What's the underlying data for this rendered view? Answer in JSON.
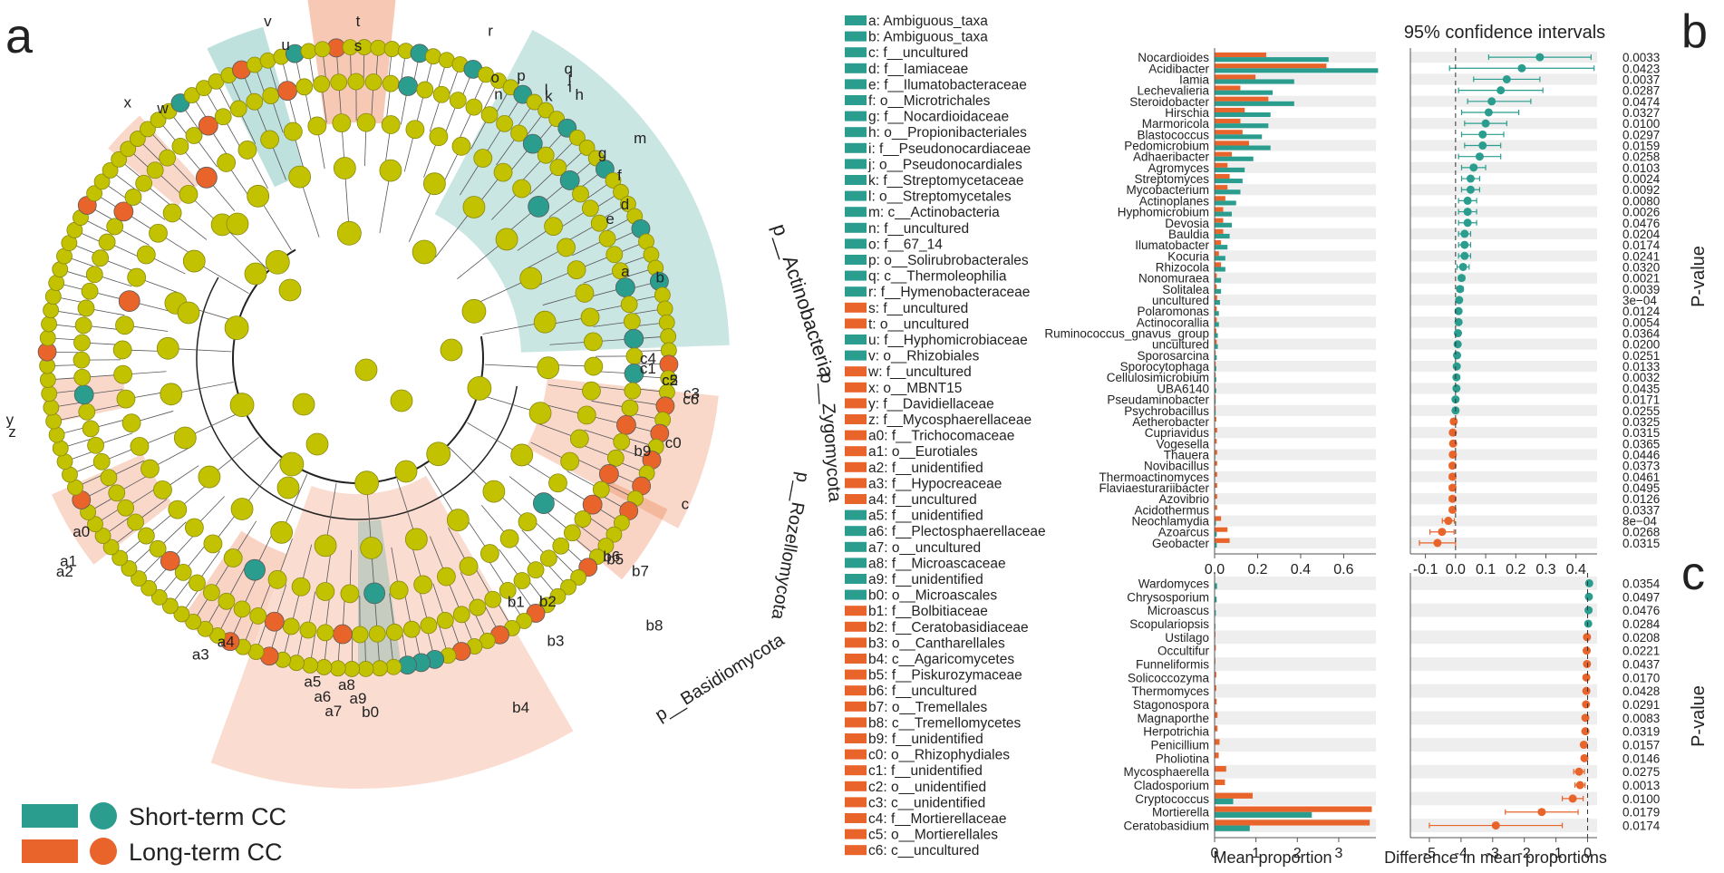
{
  "panel_labels": {
    "a": "a",
    "b": "b",
    "c": "c"
  },
  "colors": {
    "short": "#2a9d8f",
    "long": "#e8642a",
    "node": "#c2c200",
    "nodeStroke": "#8a8a10"
  },
  "legend": {
    "short": "Short-term CC",
    "long": "Long-term CC"
  },
  "cladogram": {
    "phyla": [
      "p__Actinobacteria",
      "p__Zygomycota",
      "p__Rozellomycota",
      "p__Basidiomycota"
    ],
    "clade_letters": [
      "a",
      "b",
      "c",
      "d",
      "e",
      "f",
      "g",
      "h",
      "i",
      "j",
      "k",
      "l",
      "m",
      "n",
      "o",
      "p",
      "q",
      "r",
      "s",
      "t",
      "u",
      "v",
      "w",
      "x",
      "y",
      "z",
      "a0",
      "a1",
      "a2",
      "a3",
      "a4",
      "a5",
      "a6",
      "a7",
      "a8",
      "a9",
      "b0",
      "b1",
      "b2",
      "b3",
      "b4",
      "b5",
      "b6",
      "b7",
      "b8",
      "b9",
      "c0",
      "c1",
      "c2",
      "c3",
      "c4",
      "c5",
      "c6"
    ],
    "key": [
      {
        "id": "a",
        "text": "a: Ambiguous_taxa",
        "g": "short"
      },
      {
        "id": "b",
        "text": "b: Ambiguous_taxa",
        "g": "short"
      },
      {
        "id": "c",
        "text": "c: f__uncultured",
        "g": "short"
      },
      {
        "id": "d",
        "text": "d: f__Iamiaceae",
        "g": "short"
      },
      {
        "id": "e",
        "text": "e: f__Ilumatobacteraceae",
        "g": "short"
      },
      {
        "id": "f",
        "text": "f: o__Microtrichales",
        "g": "short"
      },
      {
        "id": "g",
        "text": "g: f__Nocardioidaceae",
        "g": "short"
      },
      {
        "id": "h",
        "text": "h: o__Propionibacteriales",
        "g": "short"
      },
      {
        "id": "i",
        "text": "i: f__Pseudonocardiaceae",
        "g": "short"
      },
      {
        "id": "j",
        "text": "j: o__Pseudonocardiales",
        "g": "short"
      },
      {
        "id": "k",
        "text": "k: f__Streptomycetaceae",
        "g": "short"
      },
      {
        "id": "l",
        "text": "l: o__Streptomycetales",
        "g": "short"
      },
      {
        "id": "m",
        "text": "m: c__Actinobacteria",
        "g": "short"
      },
      {
        "id": "n",
        "text": "n: f__uncultured",
        "g": "short"
      },
      {
        "id": "o",
        "text": "o: f__67_14",
        "g": "short"
      },
      {
        "id": "p",
        "text": "p: o__Solirubrobacterales",
        "g": "short"
      },
      {
        "id": "q",
        "text": "q: c__Thermoleophilia",
        "g": "short"
      },
      {
        "id": "r",
        "text": "r: f__Hymenobacteraceae",
        "g": "short"
      },
      {
        "id": "s",
        "text": "s: f__uncultured",
        "g": "long"
      },
      {
        "id": "t",
        "text": "t: o__uncultured",
        "g": "long"
      },
      {
        "id": "u",
        "text": "u: f__Hyphomicrobiaceae",
        "g": "short"
      },
      {
        "id": "v",
        "text": "v: o__Rhizobiales",
        "g": "short"
      },
      {
        "id": "w",
        "text": "w: f__uncultured",
        "g": "long"
      },
      {
        "id": "x",
        "text": "x: o__MBNT15",
        "g": "long"
      },
      {
        "id": "y",
        "text": "y: f__Davidiellaceae",
        "g": "long"
      },
      {
        "id": "z",
        "text": "z: f__Mycosphaerellaceae",
        "g": "long"
      },
      {
        "id": "a0",
        "text": "a0: f__Trichocomaceae",
        "g": "long"
      },
      {
        "id": "a1",
        "text": "a1: o__Eurotiales",
        "g": "long"
      },
      {
        "id": "a2",
        "text": "a2: f__unidentified",
        "g": "long"
      },
      {
        "id": "a3",
        "text": "a3: f__Hypocreaceae",
        "g": "long"
      },
      {
        "id": "a4",
        "text": "a4: f__uncultured",
        "g": "long"
      },
      {
        "id": "a5",
        "text": "a5: f__unidentified",
        "g": "short"
      },
      {
        "id": "a6",
        "text": "a6: f__Plectosphaerellaceae",
        "g": "short"
      },
      {
        "id": "a7",
        "text": "a7: o__uncultured",
        "g": "short"
      },
      {
        "id": "a8",
        "text": "a8: f__Microascaceae",
        "g": "short"
      },
      {
        "id": "a9",
        "text": "a9: f__unidentified",
        "g": "short"
      },
      {
        "id": "b0",
        "text": "b0: o__Microascales",
        "g": "short"
      },
      {
        "id": "b1",
        "text": "b1: f__Bolbitiaceae",
        "g": "long"
      },
      {
        "id": "b2",
        "text": "b2: f__Ceratobasidiaceae",
        "g": "long"
      },
      {
        "id": "b3",
        "text": "b3: o__Cantharellales",
        "g": "long"
      },
      {
        "id": "b4",
        "text": "b4: c__Agaricomycetes",
        "g": "long"
      },
      {
        "id": "b5",
        "text": "b5: f__Piskurozymaceae",
        "g": "long"
      },
      {
        "id": "b6",
        "text": "b6: f__uncultured",
        "g": "long"
      },
      {
        "id": "b7",
        "text": "b7: o__Tremellales",
        "g": "long"
      },
      {
        "id": "b8",
        "text": "b8: c__Tremellomycetes",
        "g": "long"
      },
      {
        "id": "b9",
        "text": "b9: f__unidentified",
        "g": "long"
      },
      {
        "id": "c0",
        "text": "c0: o__Rhizophydiales",
        "g": "long"
      },
      {
        "id": "c1",
        "text": "c1: f__unidentified",
        "g": "long"
      },
      {
        "id": "c2",
        "text": "c2: o__unidentified",
        "g": "long"
      },
      {
        "id": "c3",
        "text": "c3: c__unidentified",
        "g": "long"
      },
      {
        "id": "c4",
        "text": "c4: f__Mortierellaceae",
        "g": "long"
      },
      {
        "id": "c5",
        "text": "c5: o__Mortierellales",
        "g": "long"
      },
      {
        "id": "c6",
        "text": "c6: c__uncultured",
        "g": "long"
      }
    ]
  },
  "chart_data": [
    {
      "type": "bar",
      "panel": "b",
      "title": "95% confidence intervals",
      "xlabel": "Mean proportion",
      "xlim": [
        0,
        0.75
      ],
      "xticks": [
        "0.0",
        "0.2",
        "0.4",
        "0.6"
      ],
      "categories": [
        "Nocardioides",
        "Acidibacter",
        "Iamia",
        "Lechevalieria",
        "Steroidobacter",
        "Hirschia",
        "Marmoricola",
        "Blastococcus",
        "Pedomicrobium",
        "Adhaeribacter",
        "Agromyces",
        "Streptomyces",
        "Mycobacterium",
        "Actinoplanes",
        "Hyphomicrobium",
        "Devosia",
        "Bauldia",
        "Ilumatobacter",
        "Kocuria",
        "Rhizocola",
        "Nonomuraea",
        "Solitalea",
        "uncultured",
        "Polaromonas",
        "Actinocorallia",
        "Ruminococcus_gnavus_group",
        "uncultured",
        "Sporosarcina",
        "Sporocytophaga",
        "Cellulosimicrobium",
        "UBA6140",
        "Pseudaminobacter",
        "Psychrobacillus",
        "Aetherobacter",
        "Cupriavidus",
        "Vogesella",
        "Thauera",
        "Novibacillus",
        "Thermoactinomyces",
        "Flaviaesturariibacter",
        "Azovibrio",
        "Acidothermus",
        "Neochlamydia",
        "Azoarcus",
        "Geobacter"
      ],
      "series": [
        {
          "name": "Long-term CC",
          "values": [
            0.24,
            0.52,
            0.19,
            0.12,
            0.25,
            0.14,
            0.12,
            0.13,
            0.16,
            0.08,
            0.06,
            0.07,
            0.06,
            0.05,
            0.04,
            0.04,
            0.04,
            0.03,
            0.02,
            0.03,
            0.01,
            0.01,
            0.012,
            0.01,
            0.01,
            0.008,
            0.01,
            0.005,
            0.005,
            0.005,
            0.004,
            0.005,
            0.005,
            0.008,
            0.012,
            0.01,
            0.012,
            0.012,
            0.012,
            0.012,
            0.012,
            0.012,
            0.03,
            0.06,
            0.07
          ]
        },
        {
          "name": "Short-term CC",
          "values": [
            0.53,
            0.76,
            0.37,
            0.27,
            0.37,
            0.26,
            0.25,
            0.22,
            0.26,
            0.18,
            0.14,
            0.13,
            0.12,
            0.1,
            0.08,
            0.08,
            0.07,
            0.06,
            0.05,
            0.05,
            0.03,
            0.03,
            0.025,
            0.02,
            0.02,
            0.015,
            0.015,
            0.01,
            0.008,
            0.008,
            0.008,
            0.005,
            0.005,
            0.002,
            0.003,
            0.002,
            0.003,
            0.002,
            0.002,
            0.002,
            0.002,
            0.002,
            0.006,
            0.01,
            0.01
          ]
        }
      ]
    },
    {
      "type": "scatter",
      "panel": "b",
      "title": "95% confidence intervals",
      "xlabel": "",
      "ylabel": "P-value",
      "xlim": [
        -0.15,
        0.47
      ],
      "xticks": [
        "-0.1",
        "0.0",
        "0.1",
        "0.2",
        "0.3",
        "0.4"
      ],
      "categories": [
        "Nocardioides",
        "Acidibacter",
        "Iamia",
        "Lechevalieria",
        "Steroidobacter",
        "Hirschia",
        "Marmoricola",
        "Blastococcus",
        "Pedomicrobium",
        "Adhaeribacter",
        "Agromyces",
        "Streptomyces",
        "Mycobacterium",
        "Actinoplanes",
        "Hyphomicrobium",
        "Devosia",
        "Bauldia",
        "Ilumatobacter",
        "Kocuria",
        "Rhizocola",
        "Nonomuraea",
        "Solitalea",
        "uncultured",
        "Polaromonas",
        "Actinocorallia",
        "Ruminococcus_gnavus_group",
        "uncultured",
        "Sporosarcina",
        "Sporocytophaga",
        "Cellulosimicrobium",
        "UBA6140",
        "Pseudaminobacter",
        "Psychrobacillus",
        "Aetherobacter",
        "Cupriavidus",
        "Vogesella",
        "Thauera",
        "Novibacillus",
        "Thermoactinomyces",
        "Flaviaesturariibacter",
        "Azovibrio",
        "Acidothermus",
        "Neochlamydia",
        "Azoarcus",
        "Geobacter"
      ],
      "diff": [
        0.28,
        0.22,
        0.17,
        0.15,
        0.12,
        0.11,
        0.1,
        0.09,
        0.09,
        0.08,
        0.06,
        0.05,
        0.05,
        0.04,
        0.04,
        0.04,
        0.03,
        0.03,
        0.03,
        0.025,
        0.02,
        0.015,
        0.012,
        0.01,
        0.01,
        0.008,
        0.007,
        0.005,
        0.004,
        0.003,
        0.003,
        0.0,
        0.0,
        -0.006,
        -0.009,
        -0.008,
        -0.009,
        -0.01,
        -0.01,
        -0.01,
        -0.01,
        -0.01,
        -0.024,
        -0.045,
        -0.06
      ],
      "ci_low": [
        0.11,
        -0.02,
        0.06,
        0.01,
        0.04,
        0.02,
        0.03,
        0.02,
        0.03,
        0.01,
        0.02,
        0.02,
        0.02,
        0.01,
        0.01,
        0.01,
        0.01,
        0.01,
        0.01,
        0.005,
        0.01,
        0.005,
        0.006,
        0.003,
        0.003,
        0.002,
        0.002,
        0.001,
        0.001,
        0.001,
        0.001,
        -0.002,
        -0.002,
        -0.012,
        -0.018,
        -0.016,
        -0.018,
        -0.02,
        -0.02,
        -0.02,
        -0.02,
        -0.02,
        -0.044,
        -0.085,
        -0.12
      ],
      "ci_high": [
        0.45,
        0.46,
        0.28,
        0.29,
        0.25,
        0.21,
        0.17,
        0.16,
        0.15,
        0.15,
        0.1,
        0.08,
        0.08,
        0.07,
        0.07,
        0.07,
        0.05,
        0.05,
        0.05,
        0.045,
        0.03,
        0.025,
        0.018,
        0.017,
        0.017,
        0.014,
        0.012,
        0.009,
        0.007,
        0.005,
        0.005,
        0.002,
        0.002,
        0.0,
        0.0,
        0.0,
        0.0,
        0.0,
        0.0,
        0.0,
        0.0,
        0.0,
        -0.004,
        -0.005,
        0.0
      ],
      "pvalues": [
        "0.0033",
        "0.0423",
        "0.0037",
        "0.0287",
        "0.0474",
        "0.0327",
        "0.0100",
        "0.0297",
        "0.0159",
        "0.0258",
        "0.0103",
        "0.0024",
        "0.0092",
        "0.0080",
        "0.0026",
        "0.0476",
        "0.0204",
        "0.0174",
        "0.0241",
        "0.0320",
        "0.0021",
        "0.0039",
        "3e−04",
        "0.0124",
        "0.0054",
        "0.0364",
        "0.0200",
        "0.0251",
        "0.0133",
        "0.0032",
        "0.0435",
        "0.0171",
        "0.0255",
        "0.0325",
        "0.0315",
        "0.0365",
        "0.0446",
        "0.0373",
        "0.0461",
        "0.0495",
        "0.0126",
        "0.0337",
        "8e−04",
        "0.0268",
        "0.0315"
      ]
    },
    {
      "type": "bar",
      "panel": "c",
      "xlabel": "Mean proportion",
      "xlim": [
        0,
        3.9
      ],
      "xticks": [
        "0",
        "1",
        "2",
        "3"
      ],
      "categories": [
        "Wardomyces",
        "Chrysosporium",
        "Microascus",
        "Scopulariopsis",
        "Ustilago",
        "Occultifur",
        "Funneliformis",
        "Solicoccozyma",
        "Thermomyces",
        "Stagonospora",
        "Magnaporthe",
        "Herpotrichia",
        "Penicillium",
        "Pholiotina",
        "Mycosphaerella",
        "Cladosporium",
        "Cryptococcus",
        "Mortierella",
        "Ceratobasidium"
      ],
      "series": [
        {
          "name": "Long-term CC",
          "values": [
            0.005,
            0.005,
            0.005,
            0.003,
            0.02,
            0.03,
            0.02,
            0.04,
            0.04,
            0.05,
            0.07,
            0.07,
            0.12,
            0.1,
            0.28,
            0.25,
            0.92,
            3.8,
            3.75
          ]
        },
        {
          "name": "Short-term CC",
          "values": [
            0.06,
            0.05,
            0.03,
            0.02,
            0.002,
            0.002,
            0.002,
            0.004,
            0.004,
            0.004,
            0.004,
            0.004,
            0.004,
            0.004,
            0.01,
            0.01,
            0.45,
            2.35,
            0.85
          ]
        }
      ]
    },
    {
      "type": "scatter",
      "panel": "c",
      "xlabel": "Difference in mean proportions",
      "ylabel": "P-value",
      "xlim": [
        -5.6,
        0.3
      ],
      "xticks": [
        "-5",
        "-4",
        "-3",
        "-2",
        "-1",
        "0"
      ],
      "categories": [
        "Wardomyces",
        "Chrysosporium",
        "Microascus",
        "Scopulariopsis",
        "Ustilago",
        "Occultifur",
        "Funneliformis",
        "Solicoccozyma",
        "Thermomyces",
        "Stagonospora",
        "Magnaporthe",
        "Herpotrichia",
        "Penicillium",
        "Pholiotina",
        "Mycosphaerella",
        "Cladosporium",
        "Cryptococcus",
        "Mortierella",
        "Ceratobasidium"
      ],
      "diff": [
        0.05,
        0.04,
        0.03,
        0.02,
        -0.02,
        -0.03,
        -0.02,
        -0.04,
        -0.04,
        -0.05,
        -0.07,
        -0.07,
        -0.12,
        -0.1,
        -0.27,
        -0.24,
        -0.47,
        -1.45,
        -2.9
      ],
      "ci_low": [
        0.0,
        0.0,
        0.0,
        0.0,
        -0.04,
        -0.05,
        -0.04,
        -0.07,
        -0.07,
        -0.09,
        -0.11,
        -0.12,
        -0.2,
        -0.17,
        -0.44,
        -0.4,
        -0.8,
        -2.6,
        -5.0
      ],
      "ci_high": [
        0.1,
        0.08,
        0.06,
        0.04,
        0.0,
        -0.01,
        0.0,
        -0.01,
        -0.01,
        -0.01,
        -0.03,
        -0.02,
        -0.04,
        -0.03,
        -0.1,
        -0.08,
        -0.14,
        -0.3,
        -0.8
      ],
      "pvalues": [
        "0.0354",
        "0.0497",
        "0.0476",
        "0.0284",
        "0.0208",
        "0.0221",
        "0.0437",
        "0.0170",
        "0.0428",
        "0.0291",
        "0.0083",
        "0.0319",
        "0.0157",
        "0.0146",
        "0.0275",
        "0.0013",
        "0.0100",
        "0.0179",
        "0.0174"
      ]
    }
  ]
}
